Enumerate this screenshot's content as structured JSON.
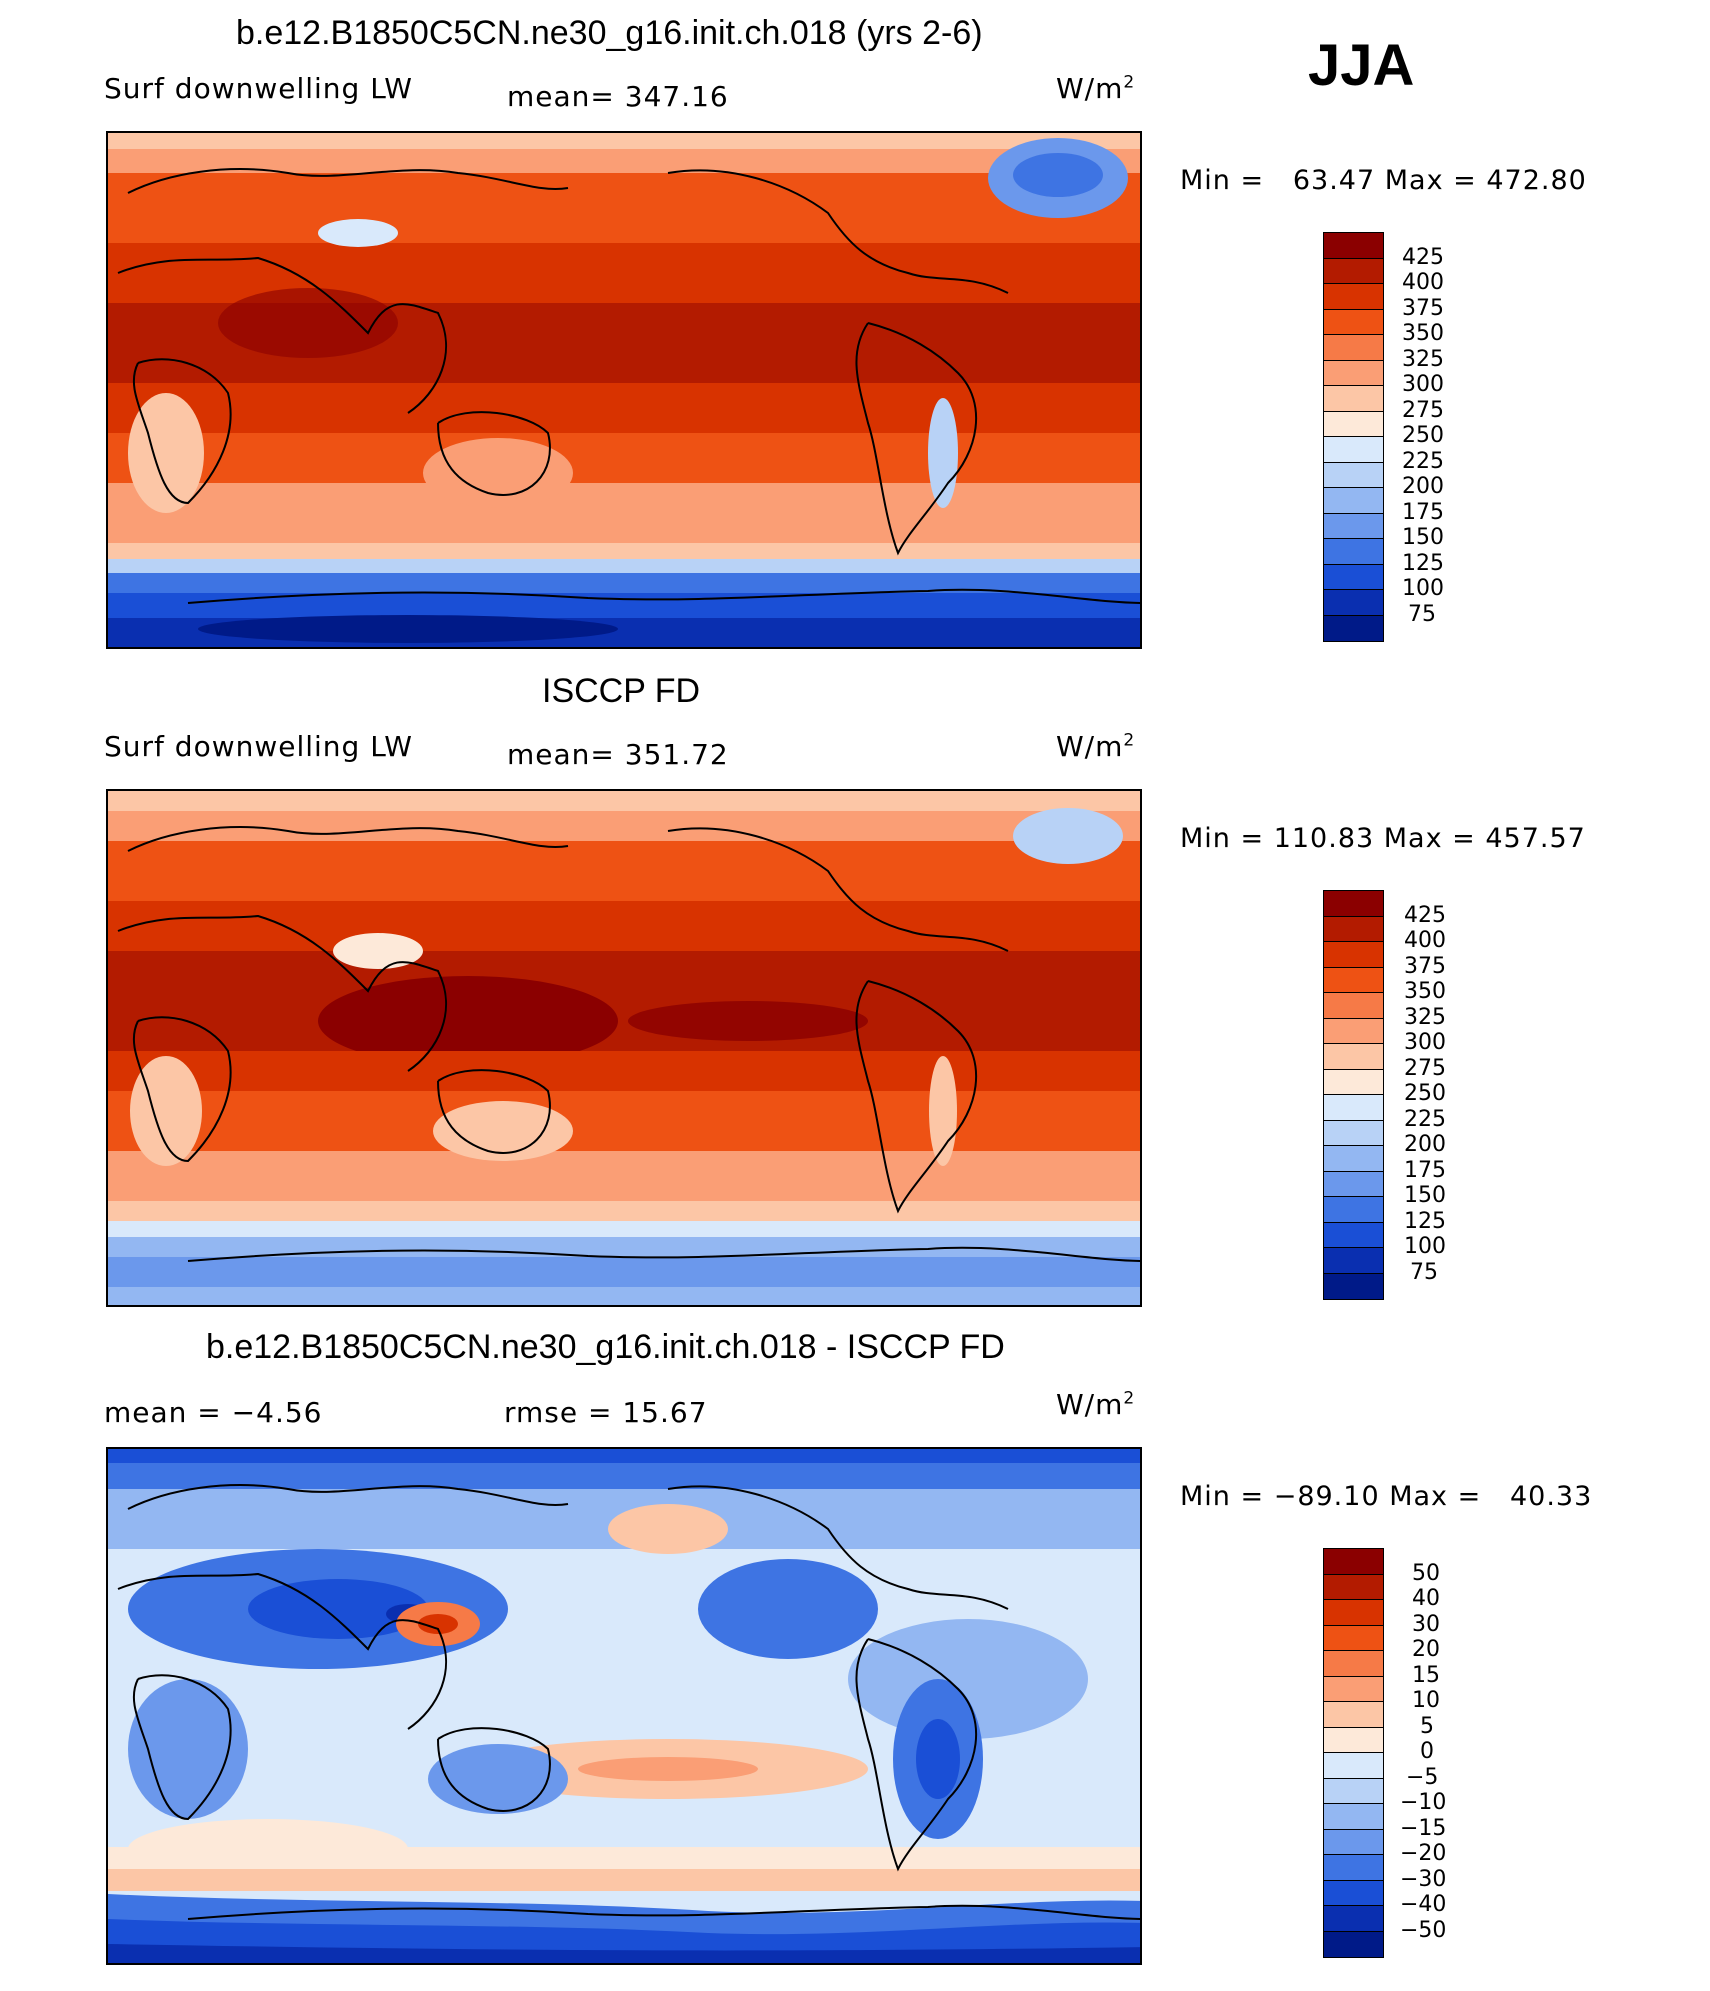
{
  "season": "JJA",
  "panels": [
    {
      "title": "b.e12.B1850C5CN.ne30_g16.init.ch.018 (yrs 2-6)",
      "left_label": "Surf downwelling LW",
      "mean_label": "mean= 347.16",
      "units_label": "W/m",
      "units_sup": "2",
      "minmax": "Min =   63.47 Max = 472.80",
      "ticks": [
        "425",
        "400",
        "375",
        "350",
        "325",
        "300",
        "275",
        "250",
        "225",
        "200",
        "175",
        "150",
        "125",
        "100",
        "75"
      ]
    },
    {
      "title": "ISCCP FD",
      "left_label": "Surf downwelling LW",
      "mean_label": "mean= 351.72",
      "units_label": "W/m",
      "units_sup": "2",
      "minmax": "Min = 110.83 Max = 457.57",
      "ticks": [
        "425",
        "400",
        "375",
        "350",
        "325",
        "300",
        "275",
        "250",
        "225",
        "200",
        "175",
        "150",
        "125",
        "100",
        "75"
      ]
    },
    {
      "title": "b.e12.B1850C5CN.ne30_g16.init.ch.018 - ISCCP FD",
      "left_label": "mean =   −4.56",
      "mean_label": "rmse =   15.67",
      "units_label": "W/m",
      "units_sup": "2",
      "minmax": "Min = −89.10 Max =   40.33",
      "ticks": [
        "50",
        "40",
        "30",
        "20",
        "15",
        "10",
        "5",
        "0",
        "−5",
        "−10",
        "−15",
        "−20",
        "−30",
        "−40",
        "−50"
      ]
    }
  ],
  "colors": {
    "palette": [
      "#8b0000",
      "#b31b00",
      "#d83300",
      "#ee5214",
      "#f67a47",
      "#fa9e75",
      "#fcc6a6",
      "#fde9d9",
      "#d9e9fb",
      "#b8d2f6",
      "#93b7f2",
      "#6b98ec",
      "#3e74e3",
      "#1a4fd6",
      "#0a2fb0",
      "#001a88"
    ]
  }
}
